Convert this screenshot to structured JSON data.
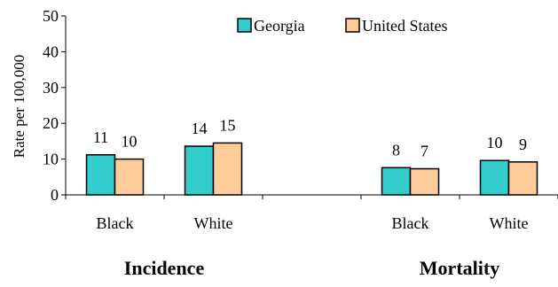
{
  "chart_data": {
    "type": "bar",
    "title": "",
    "ylabel": "Rate per 100,000",
    "xlabel": "",
    "ylim": [
      0,
      50
    ],
    "yticks": [
      0,
      10,
      20,
      30,
      40,
      50
    ],
    "categories": [
      "Black",
      "White",
      "",
      "Black",
      "White"
    ],
    "groups": [
      "Incidence",
      "Mortality"
    ],
    "series": [
      {
        "name": "Georgia",
        "color": "#33CCCC",
        "values": [
          11,
          14,
          null,
          8,
          10
        ],
        "labels": [
          "11",
          "14",
          "",
          "8",
          "10"
        ],
        "display": [
          11.2,
          13.6,
          null,
          7.6,
          9.6
        ]
      },
      {
        "name": "United States",
        "color": "#FFCC99",
        "values": [
          10,
          15,
          null,
          7,
          9
        ],
        "labels": [
          "10",
          "15",
          "",
          "7",
          "9"
        ],
        "display": [
          10.0,
          14.5,
          null,
          7.3,
          9.2
        ]
      }
    ],
    "legend": "top-right",
    "grid": false
  }
}
